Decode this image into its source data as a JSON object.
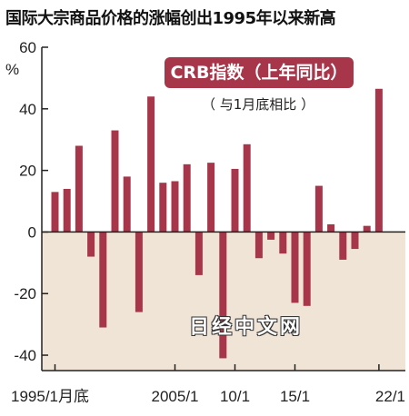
{
  "title": "国际大宗商品价格的涨幅创出1995年以来新高",
  "legend": {
    "label": "CRB指数（上年同比）",
    "sublabel": "（ 与1月底相比 ）"
  },
  "watermark": "日经中文网",
  "colors": {
    "bar": "#a8364b",
    "negative_band": "#efe4d6",
    "legend_bg": "#a8364b"
  },
  "chart_data": {
    "type": "bar",
    "title": "国际大宗商品价格的涨幅创出1995年以来新高",
    "ylabel": "%",
    "ylim": [
      -45,
      60
    ],
    "yticks": [
      60,
      40,
      20,
      0,
      -20,
      -40
    ],
    "grid": false,
    "x_tick_labels": [
      {
        "label": "1995/1月底",
        "year": 1995
      },
      {
        "label": "2005/1",
        "year": 2005
      },
      {
        "label": "10/1",
        "year": 2010
      },
      {
        "label": "15/1",
        "year": 2015
      },
      {
        "label": "22/1",
        "year": 2022
      }
    ],
    "series": [
      {
        "values": [
          {
            "year": 1995,
            "value": 13
          },
          {
            "year": 1996,
            "value": 14
          },
          {
            "year": 1997,
            "value": 28
          },
          {
            "year": 1998,
            "value": -8
          },
          {
            "year": 1999,
            "value": -31
          },
          {
            "year": 2000,
            "value": 33
          },
          {
            "year": 2001,
            "value": 18
          },
          {
            "year": 2002,
            "value": -26
          },
          {
            "year": 2003,
            "value": 44
          },
          {
            "year": 2004,
            "value": 16
          },
          {
            "year": 2005,
            "value": 16.5
          },
          {
            "year": 2006,
            "value": 22
          },
          {
            "year": 2007,
            "value": -14
          },
          {
            "year": 2008,
            "value": 22.5
          },
          {
            "year": 2009,
            "value": -41
          },
          {
            "year": 2010,
            "value": 20.5
          },
          {
            "year": 2011,
            "value": 28.5
          },
          {
            "year": 2012,
            "value": -8.5
          },
          {
            "year": 2013,
            "value": -2.5
          },
          {
            "year": 2014,
            "value": -7
          },
          {
            "year": 2015,
            "value": -23
          },
          {
            "year": 2016,
            "value": -24
          },
          {
            "year": 2017,
            "value": 15
          },
          {
            "year": 2018,
            "value": 2.5
          },
          {
            "year": 2019,
            "value": -9
          },
          {
            "year": 2020,
            "value": -5.5
          },
          {
            "year": 2021,
            "value": 2
          },
          {
            "year": 2022,
            "value": 46.5
          }
        ]
      }
    ]
  }
}
